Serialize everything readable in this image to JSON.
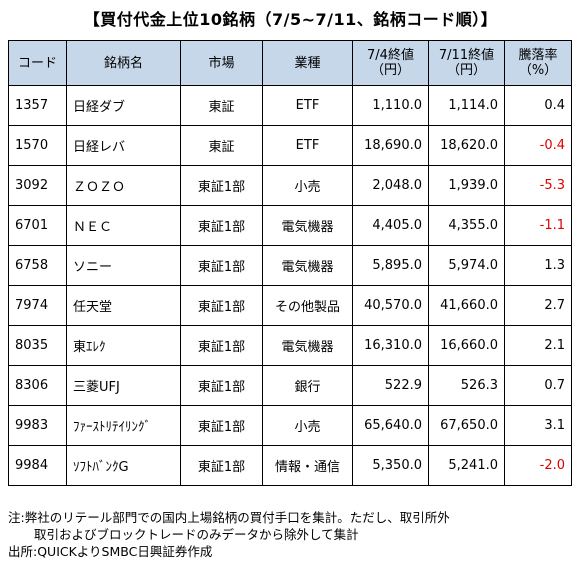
{
  "title": "【買付代金上位10銘柄（7/5~7/11、銘柄コード順）】",
  "headers": {
    "code": "コード",
    "name": "銘柄名",
    "market": "市場",
    "industry": "業種",
    "close1_line1": "7/4終値",
    "close1_line2": "（円）",
    "close2_line1": "7/11終値",
    "close2_line2": "（円）",
    "change_line1": "騰落率",
    "change_line2": "（%）"
  },
  "rows": [
    {
      "code": "1357",
      "name": "日経ダブ",
      "market": "東証",
      "industry": "ETF",
      "close_0704": "1,110.0",
      "close_0711": "1,114.0",
      "change": "0.4",
      "negative": false
    },
    {
      "code": "1570",
      "name": "日経レバ",
      "market": "東証",
      "industry": "ETF",
      "close_0704": "18,690.0",
      "close_0711": "18,620.0",
      "change": "-0.4",
      "negative": true
    },
    {
      "code": "3092",
      "name": "ＺＯＺＯ",
      "market": "東証1部",
      "industry": "小売",
      "close_0704": "2,048.0",
      "close_0711": "1,939.0",
      "change": "-5.3",
      "negative": true
    },
    {
      "code": "6701",
      "name": "ＮＥＣ",
      "market": "東証1部",
      "industry": "電気機器",
      "close_0704": "4,405.0",
      "close_0711": "4,355.0",
      "change": "-1.1",
      "negative": true
    },
    {
      "code": "6758",
      "name": "ソニー",
      "market": "東証1部",
      "industry": "電気機器",
      "close_0704": "5,895.0",
      "close_0711": "5,974.0",
      "change": "1.3",
      "negative": false
    },
    {
      "code": "7974",
      "name": "任天堂",
      "market": "東証1部",
      "industry": "その他製品",
      "close_0704": "40,570.0",
      "close_0711": "41,660.0",
      "change": "2.7",
      "negative": false
    },
    {
      "code": "8035",
      "name": "東ｴﾚｸ",
      "market": "東証1部",
      "industry": "電気機器",
      "close_0704": "16,310.0",
      "close_0711": "16,660.0",
      "change": "2.1",
      "negative": false
    },
    {
      "code": "8306",
      "name": "三菱UFJ",
      "market": "東証1部",
      "industry": "銀行",
      "close_0704": "522.9",
      "close_0711": "526.3",
      "change": "0.7",
      "negative": false
    },
    {
      "code": "9983",
      "name": "ﾌｧｰｽﾄﾘﾃｲﾘﾝｸﾞ",
      "market": "東証1部",
      "industry": "小売",
      "close_0704": "65,640.0",
      "close_0711": "67,650.0",
      "change": "3.1",
      "negative": false
    },
    {
      "code": "9984",
      "name": "ｿﾌﾄﾊﾞﾝｸG",
      "market": "東証1部",
      "industry": "情報・通信",
      "close_0704": "5,350.0",
      "close_0711": "5,241.0",
      "change": "-2.0",
      "negative": true
    }
  ],
  "notes": {
    "line1": "注:弊社のリテール部門での国内上場銘柄の買付手口を集計。ただし、取引所外",
    "line2": "取引およびブロックトレードのみデータから除外して集計",
    "line3": "出所:QUICKよりSMBC日興証券作成"
  },
  "colors": {
    "header_bg": "#c6d7ea",
    "negative": "#e00000"
  }
}
